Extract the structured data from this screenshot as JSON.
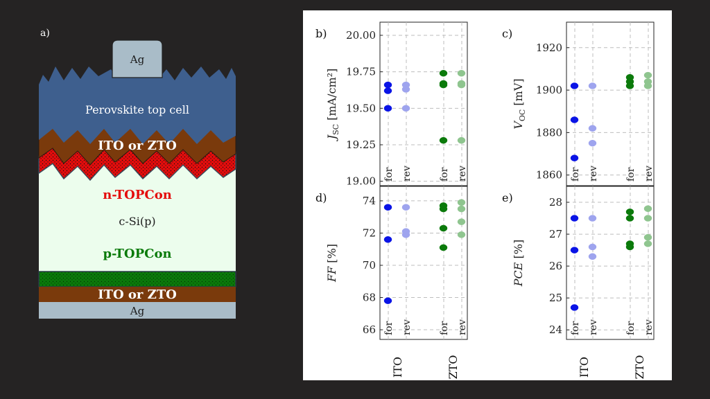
{
  "stack": {
    "panel_label": "a)",
    "top_contact": "Ag",
    "layer_perovskite": "Perovskite top cell",
    "layer_tco_top": "ITO or ZTO",
    "layer_n": "n-TOPCon",
    "layer_si": "c-Si(p)",
    "layer_p": "p-TOPCon",
    "layer_tco_bottom": "ITO or ZTO",
    "bottom_contact": "Ag"
  },
  "colors": {
    "ito": "#0a14e6",
    "ito_rev": "#9ea4ee",
    "zto": "#0b7a0b",
    "zto_rev": "#8fc58f",
    "perovskite": "#3e5f8e",
    "tco": "#7a3a0c",
    "n_topcon": "#e40c0c",
    "silicon": "#ecfded",
    "p_topcon": "#0a7a0a",
    "ag": "#a9bcc8"
  },
  "chart_data": [
    {
      "panel": "b)",
      "type": "scatter",
      "ylabel_main": "J",
      "ylabel_sub": "SC",
      "ylabel_unit": " [mA/cm²]",
      "ylim": [
        18.97,
        20.09
      ],
      "yticks": [
        "20.00",
        "19.75",
        "19.50",
        "19.25",
        "19.00"
      ],
      "ytick_values": [
        20.0,
        19.75,
        19.5,
        19.25,
        19.0
      ],
      "categories": [
        "for",
        "rev",
        "for",
        "rev"
      ],
      "series": [
        {
          "values": [
            19.66,
            19.62,
            19.5
          ]
        },
        {
          "values": [
            19.66,
            19.63,
            19.5
          ]
        },
        {
          "values": [
            19.74,
            19.67,
            19.66,
            19.28
          ]
        },
        {
          "values": [
            19.74,
            19.67,
            19.66,
            19.28
          ]
        }
      ]
    },
    {
      "panel": "c)",
      "type": "scatter",
      "ylabel_main": "V",
      "ylabel_sub": "OC",
      "ylabel_unit": " [mV]",
      "ylim": [
        1855,
        1932
      ],
      "yticks": [
        "1920",
        "1900",
        "1880",
        "1860"
      ],
      "ytick_values": [
        1920,
        1900,
        1880,
        1860
      ],
      "categories": [
        "for",
        "rev",
        "for",
        "rev"
      ],
      "series": [
        {
          "values": [
            1902,
            1886,
            1868
          ]
        },
        {
          "values": [
            1902,
            1882,
            1875
          ]
        },
        {
          "values": [
            1906,
            1904,
            1902
          ]
        },
        {
          "values": [
            1907,
            1904,
            1902
          ]
        }
      ]
    },
    {
      "panel": "d)",
      "type": "scatter",
      "ylabel_main": "FF",
      "ylabel_sub": "",
      "ylabel_unit": " [%]",
      "ylim": [
        65.4,
        74.9
      ],
      "yticks": [
        "74",
        "72",
        "70",
        "68",
        "66"
      ],
      "ytick_values": [
        74,
        72,
        70,
        68,
        66
      ],
      "categories": [
        "for",
        "rev",
        "for",
        "rev"
      ],
      "series": [
        {
          "values": [
            73.6,
            71.6,
            67.8
          ]
        },
        {
          "values": [
            73.6,
            72.1,
            71.9
          ]
        },
        {
          "values": [
            73.7,
            73.5,
            72.3,
            71.1
          ]
        },
        {
          "values": [
            73.9,
            73.5,
            72.7,
            71.9
          ]
        }
      ]
    },
    {
      "panel": "e)",
      "type": "scatter",
      "ylabel_main": "PCE",
      "ylabel_sub": "",
      "ylabel_unit": " [%]",
      "ylim": [
        23.7,
        28.5
      ],
      "yticks": [
        "28",
        "27",
        "26",
        "25",
        "24"
      ],
      "ytick_values": [
        28,
        27,
        26,
        25,
        24
      ],
      "categories": [
        "for",
        "rev",
        "for",
        "rev"
      ],
      "series": [
        {
          "values": [
            27.5,
            26.5,
            24.7
          ]
        },
        {
          "values": [
            27.5,
            26.6,
            26.3
          ]
        },
        {
          "values": [
            27.7,
            27.5,
            26.7,
            26.6
          ]
        },
        {
          "values": [
            27.8,
            27.5,
            26.9,
            26.7
          ]
        }
      ]
    }
  ],
  "group_labels": [
    "ITO",
    "ZTO"
  ]
}
